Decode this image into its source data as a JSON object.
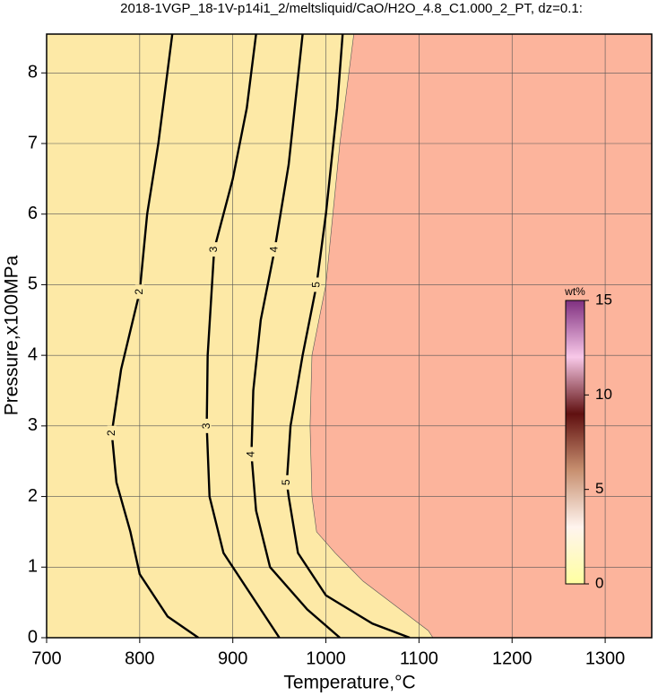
{
  "chart_data": {
    "type": "contour",
    "title": "2018-1VGP_18-1V-p14i1_2/meltsliquid/CaO/H2O_4.8_C1.000_2_PT, dz=0.1:",
    "x_label": "Temperature,°C",
    "y_label": "Pressure,x100MPa",
    "xlim": [
      700,
      1350
    ],
    "ylim": [
      0,
      8.55
    ],
    "xticks": [
      700,
      800,
      900,
      1000,
      1100,
      1200,
      1300
    ],
    "yticks": [
      0,
      1,
      2,
      3,
      4,
      5,
      6,
      7,
      8
    ],
    "grid": true,
    "background_color": "#fde9a6",
    "region_color": "#fcb49c",
    "phase_boundary": {
      "x": [
        1030,
        1015,
        1000,
        985,
        983,
        985,
        990,
        1010,
        1040,
        1080,
        1110,
        1115
      ],
      "y": [
        8.55,
        7,
        5,
        4,
        3,
        2,
        1.5,
        1.2,
        0.8,
        0.4,
        0.1,
        0
      ]
    },
    "contours": [
      {
        "level": 2,
        "x": [
          863,
          830,
          800,
          790,
          775,
          770,
          780,
          800,
          808,
          820,
          835
        ],
        "y": [
          0,
          0.3,
          0.9,
          1.5,
          2.2,
          2.9,
          3.8,
          4.9,
          6,
          7,
          8.55
        ]
      },
      {
        "level": 3,
        "x": [
          950,
          925,
          890,
          875,
          872,
          873,
          880,
          900,
          915,
          925
        ],
        "y": [
          0,
          0.5,
          1.2,
          2,
          3,
          4,
          5.5,
          6.5,
          7.5,
          8.55
        ]
      },
      {
        "level": 4,
        "x": [
          1015,
          980,
          940,
          925,
          920,
          922,
          930,
          945,
          960,
          975
        ],
        "y": [
          0,
          0.4,
          1,
          1.8,
          2.6,
          3.5,
          4.5,
          5.5,
          6.7,
          8.55
        ]
      },
      {
        "level": 5,
        "x": [
          1090,
          1050,
          1000,
          970,
          960,
          958,
          962,
          975,
          990,
          1000,
          1012,
          1018
        ],
        "y": [
          0,
          0.2,
          0.6,
          1.2,
          2,
          2.2,
          3,
          4,
          5,
          6,
          7.5,
          8.55
        ]
      }
    ],
    "colorbar": {
      "label": "wt%",
      "lim": [
        0,
        15
      ],
      "ticks": [
        0,
        5,
        10,
        15
      ],
      "colorscale": [
        {
          "value": 0,
          "color": "#ffffa0"
        },
        {
          "value": 3,
          "color": "#fff4ee"
        },
        {
          "value": 6,
          "color": "#c89070"
        },
        {
          "value": 9,
          "color": "#601010"
        },
        {
          "value": 12,
          "color": "#f8c8e8"
        },
        {
          "value": 15,
          "color": "#803080"
        }
      ]
    }
  }
}
